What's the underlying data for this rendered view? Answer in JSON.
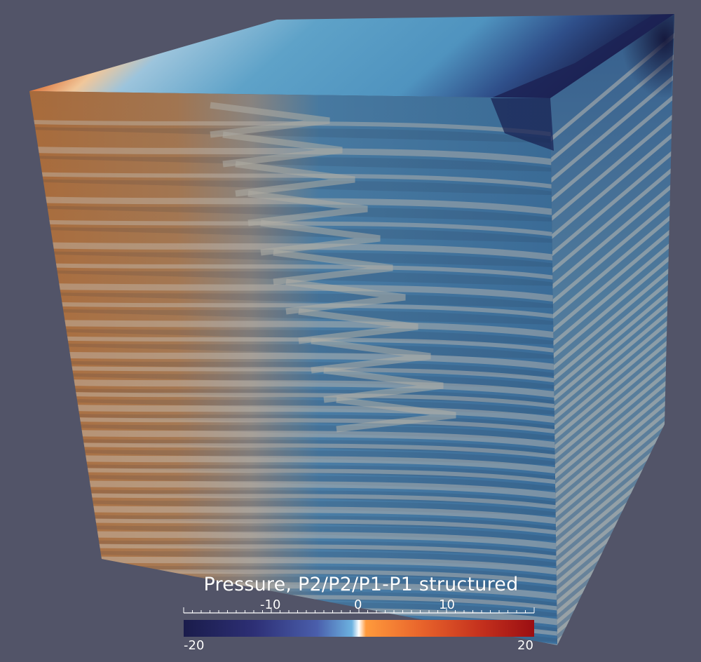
{
  "colorbar": {
    "title": "Pressure, P2/P2/P1-P1 structured",
    "range": [
      -20,
      20
    ],
    "min_label": "-20",
    "max_label": "20",
    "tick_labels": [
      "-10",
      "0",
      "10"
    ],
    "ticks": [
      -10,
      0,
      10
    ]
  },
  "colors": {
    "background": "#525468",
    "colormap": [
      "#1a1c4b",
      "#2d2f75",
      "#4a5eab",
      "#6cb2e0",
      "#ffffff",
      "#ff9a3c",
      "#e8632b",
      "#c4301d",
      "#9a0e12"
    ]
  }
}
